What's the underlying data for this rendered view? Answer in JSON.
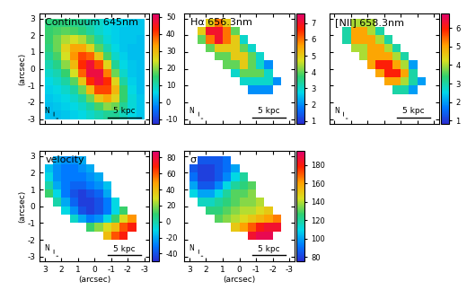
{
  "chart_data": [
    {
      "type": "heatmap",
      "title": "Continuum 645nm",
      "scale_bar": "5 kpc",
      "compass": "N",
      "ylabel": "(arcsec)",
      "tick_labels": "y",
      "xlim": [
        3.3,
        -3.3
      ],
      "ylim": [
        -3.3,
        3.3
      ],
      "xticks": [
        3,
        2,
        1,
        0,
        -1,
        -2,
        -3
      ],
      "yticks": [
        -3,
        -2,
        -1,
        0,
        1,
        2,
        3
      ],
      "x": [
        2.75,
        2.25,
        1.75,
        1.25,
        0.75,
        0.25,
        -0.25,
        -0.75,
        -1.25,
        -1.75,
        -2.25,
        -2.75
      ],
      "y": [
        2.75,
        2.25,
        1.75,
        1.25,
        0.75,
        0.25,
        -0.25,
        -0.75,
        -1.25,
        -1.75,
        -2.25,
        -2.75
      ],
      "colorbar_lim": [
        -13,
        52
      ],
      "colorbar_ticks": [
        -10,
        0,
        10,
        20,
        30,
        40,
        50
      ],
      "cells": [
        [
          14,
          14,
          14,
          13,
          12,
          10,
          8,
          6,
          5,
          5,
          4,
          4
        ],
        [
          15,
          16,
          17,
          16,
          14,
          11,
          8,
          6,
          5,
          4,
          4,
          4
        ],
        [
          15,
          18,
          22,
          24,
          22,
          17,
          11,
          7,
          5,
          4,
          4,
          3
        ],
        [
          14,
          18,
          26,
          32,
          32,
          26,
          17,
          10,
          6,
          4,
          3,
          3
        ],
        [
          12,
          16,
          24,
          34,
          40,
          38,
          28,
          16,
          8,
          5,
          3,
          3
        ],
        [
          10,
          13,
          20,
          30,
          42,
          47,
          40,
          26,
          12,
          6,
          4,
          3
        ],
        [
          8,
          10,
          15,
          24,
          38,
          48,
          48,
          36,
          18,
          8,
          4,
          3
        ],
        [
          6,
          8,
          11,
          17,
          28,
          42,
          47,
          42,
          26,
          11,
          5,
          3
        ],
        [
          5,
          6,
          8,
          11,
          18,
          30,
          40,
          40,
          30,
          15,
          6,
          3
        ],
        [
          4,
          5,
          6,
          8,
          11,
          18,
          28,
          32,
          26,
          15,
          7,
          4
        ],
        [
          3,
          4,
          5,
          6,
          8,
          11,
          16,
          20,
          18,
          12,
          7,
          4
        ],
        [
          3,
          3,
          4,
          5,
          6,
          8,
          10,
          12,
          12,
          9,
          6,
          4
        ]
      ]
    },
    {
      "type": "heatmap",
      "title": "Hα 656.3nm",
      "scale_bar": "5 kpc",
      "compass": "N",
      "tick_labels": false,
      "xlim": [
        3.3,
        -3.3
      ],
      "ylim": [
        -3.3,
        3.3
      ],
      "xticks": [
        3,
        2,
        1,
        0,
        -1,
        -2,
        -3
      ],
      "yticks": [
        -3,
        -2,
        -1,
        0,
        1,
        2,
        3
      ],
      "x": [
        2.75,
        2.25,
        1.75,
        1.25,
        0.75,
        0.25,
        -0.25,
        -0.75,
        -1.25,
        -1.75,
        -2.25,
        -2.75
      ],
      "y": [
        2.75,
        2.25,
        1.75,
        1.25,
        0.75,
        0.25,
        -0.25,
        -0.75,
        -1.25,
        -1.75,
        -2.25,
        -2.75
      ],
      "colorbar_lim": [
        0.8,
        7.6
      ],
      "colorbar_ticks": [
        1,
        2,
        3,
        4,
        5,
        6,
        7
      ],
      "cells": [
        [
          null,
          null,
          5,
          6,
          5,
          null,
          null,
          null,
          null,
          null,
          null,
          null
        ],
        [
          null,
          5,
          7,
          7,
          6,
          4,
          null,
          null,
          null,
          null,
          null,
          null
        ],
        [
          null,
          4,
          6,
          7,
          6,
          5,
          3,
          null,
          null,
          null,
          null,
          null
        ],
        [
          null,
          null,
          4,
          5,
          5,
          5,
          4,
          3,
          null,
          null,
          null,
          null
        ],
        [
          null,
          null,
          null,
          4,
          4,
          5,
          5,
          4,
          3,
          null,
          null,
          null
        ],
        [
          null,
          null,
          null,
          null,
          4,
          4,
          5,
          4,
          3,
          2,
          null,
          null
        ],
        [
          null,
          null,
          null,
          null,
          null,
          3,
          4,
          4,
          4,
          3,
          null,
          null
        ],
        [
          null,
          null,
          null,
          null,
          null,
          null,
          3,
          3,
          3,
          3,
          2,
          null
        ],
        [
          null,
          null,
          null,
          null,
          null,
          null,
          null,
          2,
          2,
          2,
          null,
          null
        ],
        [
          null,
          null,
          null,
          null,
          null,
          null,
          null,
          null,
          null,
          null,
          null,
          null
        ],
        [
          null,
          null,
          null,
          null,
          null,
          null,
          null,
          null,
          null,
          null,
          null,
          null
        ],
        [
          null,
          null,
          null,
          null,
          null,
          null,
          null,
          null,
          null,
          null,
          null,
          null
        ]
      ]
    },
    {
      "type": "heatmap",
      "title": "[NII] 658.3nm",
      "scale_bar": "5 kpc",
      "compass": "N",
      "tick_labels": false,
      "xlim": [
        3.3,
        -3.3
      ],
      "ylim": [
        -3.3,
        3.3
      ],
      "xticks": [
        3,
        2,
        1,
        0,
        -1,
        -2,
        -3
      ],
      "yticks": [
        -3,
        -2,
        -1,
        0,
        1,
        2,
        3
      ],
      "x": [
        2.75,
        2.25,
        1.75,
        1.25,
        0.75,
        0.25,
        -0.25,
        -0.75,
        -1.25,
        -1.75,
        -2.25,
        -2.75
      ],
      "y": [
        2.75,
        2.25,
        1.75,
        1.25,
        0.75,
        0.25,
        -0.25,
        -0.75,
        -1.25,
        -1.75,
        -2.25,
        -2.75
      ],
      "colorbar_lim": [
        0.8,
        6.8
      ],
      "colorbar_ticks": [
        1,
        2,
        3,
        4,
        5,
        6
      ],
      "cells": [
        [
          null,
          null,
          4,
          4,
          4,
          null,
          null,
          null,
          null,
          null,
          null,
          null
        ],
        [
          null,
          3,
          5,
          5,
          4,
          3,
          null,
          null,
          null,
          null,
          null,
          null
        ],
        [
          null,
          3,
          5,
          5,
          5,
          4,
          3,
          null,
          null,
          null,
          null,
          null
        ],
        [
          null,
          null,
          4,
          4,
          5,
          5,
          4,
          3,
          null,
          null,
          null,
          null
        ],
        [
          null,
          null,
          null,
          4,
          5,
          5,
          5,
          4,
          3,
          null,
          null,
          null
        ],
        [
          null,
          null,
          null,
          null,
          5,
          6,
          6,
          5,
          4,
          2,
          null,
          null
        ],
        [
          null,
          null,
          null,
          null,
          null,
          5,
          6,
          6,
          5,
          3,
          null,
          null
        ],
        [
          null,
          null,
          null,
          null,
          null,
          null,
          5,
          5,
          4,
          3,
          2,
          null
        ],
        [
          null,
          null,
          null,
          null,
          null,
          null,
          null,
          3,
          3,
          2,
          null,
          null
        ],
        [
          null,
          null,
          null,
          null,
          null,
          null,
          null,
          null,
          null,
          null,
          null,
          null
        ],
        [
          null,
          null,
          null,
          null,
          null,
          null,
          null,
          null,
          null,
          null,
          null,
          null
        ],
        [
          null,
          null,
          null,
          null,
          null,
          null,
          null,
          null,
          null,
          null,
          null,
          null
        ]
      ]
    },
    {
      "type": "heatmap",
      "title": "velocity",
      "scale_bar": "5 kpc",
      "compass": "N",
      "xlabel": "(arcsec)",
      "ylabel": "(arcsec)",
      "tick_labels": true,
      "xlim": [
        3.3,
        -3.3
      ],
      "ylim": [
        -3.3,
        3.3
      ],
      "xticks": [
        3,
        2,
        1,
        0,
        -1,
        -2,
        -3
      ],
      "yticks": [
        -3,
        -2,
        -1,
        0,
        1,
        2,
        3
      ],
      "x": [
        2.75,
        2.25,
        1.75,
        1.25,
        0.75,
        0.25,
        -0.25,
        -0.75,
        -1.25,
        -1.75,
        -2.25,
        -2.75
      ],
      "y": [
        2.75,
        2.25,
        1.75,
        1.25,
        0.75,
        0.25,
        -0.25,
        -0.75,
        -1.25,
        -1.75,
        -2.25,
        -2.75
      ],
      "colorbar_lim": [
        -50,
        88
      ],
      "colorbar_ticks": [
        -40,
        -20,
        0,
        20,
        40,
        60,
        80
      ],
      "cells": [
        [
          null,
          -20,
          -25,
          -25,
          -20,
          null,
          null,
          null,
          null,
          null,
          null,
          null
        ],
        [
          -15,
          -25,
          -30,
          -30,
          -25,
          -20,
          null,
          null,
          null,
          null,
          null,
          null
        ],
        [
          -10,
          -25,
          -30,
          -30,
          -30,
          -25,
          -20,
          null,
          null,
          null,
          null,
          null
        ],
        [
          0,
          -20,
          -30,
          -35,
          -35,
          -30,
          -25,
          -15,
          null,
          null,
          null,
          null
        ],
        [
          10,
          -10,
          -30,
          -40,
          -45,
          -40,
          -35,
          -20,
          null,
          null,
          null,
          null
        ],
        [
          null,
          0,
          -20,
          -35,
          -45,
          -45,
          -40,
          -30,
          -10,
          null,
          null,
          null
        ],
        [
          null,
          null,
          -10,
          -25,
          -40,
          -45,
          -40,
          -30,
          -10,
          10,
          null,
          null
        ],
        [
          null,
          null,
          null,
          -5,
          -20,
          -30,
          -25,
          -10,
          10,
          30,
          50,
          null
        ],
        [
          null,
          null,
          null,
          null,
          null,
          10,
          20,
          30,
          40,
          60,
          70,
          null
        ],
        [
          null,
          null,
          null,
          null,
          null,
          null,
          null,
          40,
          60,
          70,
          null,
          null
        ],
        [
          null,
          null,
          null,
          null,
          null,
          null,
          null,
          null,
          null,
          null,
          null,
          null
        ],
        [
          null,
          null,
          null,
          null,
          null,
          null,
          null,
          null,
          null,
          null,
          null,
          null
        ]
      ]
    },
    {
      "type": "heatmap",
      "title": "σ",
      "scale_bar": "5 kpc",
      "compass": "N",
      "xlabel": "(arcsec)",
      "tick_labels": "x",
      "xlim": [
        3.3,
        -3.3
      ],
      "ylim": [
        -3.3,
        3.3
      ],
      "xticks": [
        3,
        2,
        1,
        0,
        -1,
        -2,
        -3
      ],
      "yticks": [
        -3,
        -2,
        -1,
        0,
        1,
        2,
        3
      ],
      "x": [
        2.75,
        2.25,
        1.75,
        1.25,
        0.75,
        0.25,
        -0.25,
        -0.75,
        -1.25,
        -1.75,
        -2.25,
        -2.75
      ],
      "y": [
        2.75,
        2.25,
        1.75,
        1.25,
        0.75,
        0.25,
        -0.25,
        -0.75,
        -1.25,
        -1.75,
        -2.25,
        -2.75
      ],
      "colorbar_lim": [
        75,
        195
      ],
      "colorbar_ticks": [
        80,
        100,
        120,
        140,
        160,
        180
      ],
      "cells": [
        [
          null,
          85,
          85,
          85,
          90,
          null,
          null,
          null,
          null,
          null,
          null,
          null
        ],
        [
          85,
          80,
          80,
          85,
          90,
          100,
          null,
          null,
          null,
          null,
          null,
          null
        ],
        [
          90,
          80,
          80,
          85,
          95,
          110,
          120,
          null,
          null,
          null,
          null,
          null
        ],
        [
          100,
          85,
          85,
          95,
          110,
          120,
          125,
          130,
          null,
          null,
          null,
          null
        ],
        [
          110,
          100,
          100,
          110,
          120,
          130,
          130,
          135,
          null,
          null,
          null,
          null
        ],
        [
          null,
          115,
          115,
          120,
          125,
          130,
          135,
          135,
          140,
          null,
          null,
          null
        ],
        [
          null,
          null,
          125,
          125,
          130,
          135,
          140,
          140,
          145,
          150,
          null,
          null
        ],
        [
          null,
          null,
          null,
          130,
          135,
          140,
          145,
          150,
          155,
          160,
          165,
          null
        ],
        [
          null,
          null,
          null,
          null,
          null,
          150,
          160,
          170,
          180,
          185,
          185,
          null
        ],
        [
          null,
          null,
          null,
          null,
          null,
          null,
          null,
          185,
          190,
          190,
          null,
          null
        ],
        [
          null,
          null,
          null,
          null,
          null,
          null,
          null,
          null,
          null,
          null,
          null,
          null
        ],
        [
          null,
          null,
          null,
          null,
          null,
          null,
          null,
          null,
          null,
          null,
          null,
          null
        ]
      ]
    }
  ]
}
